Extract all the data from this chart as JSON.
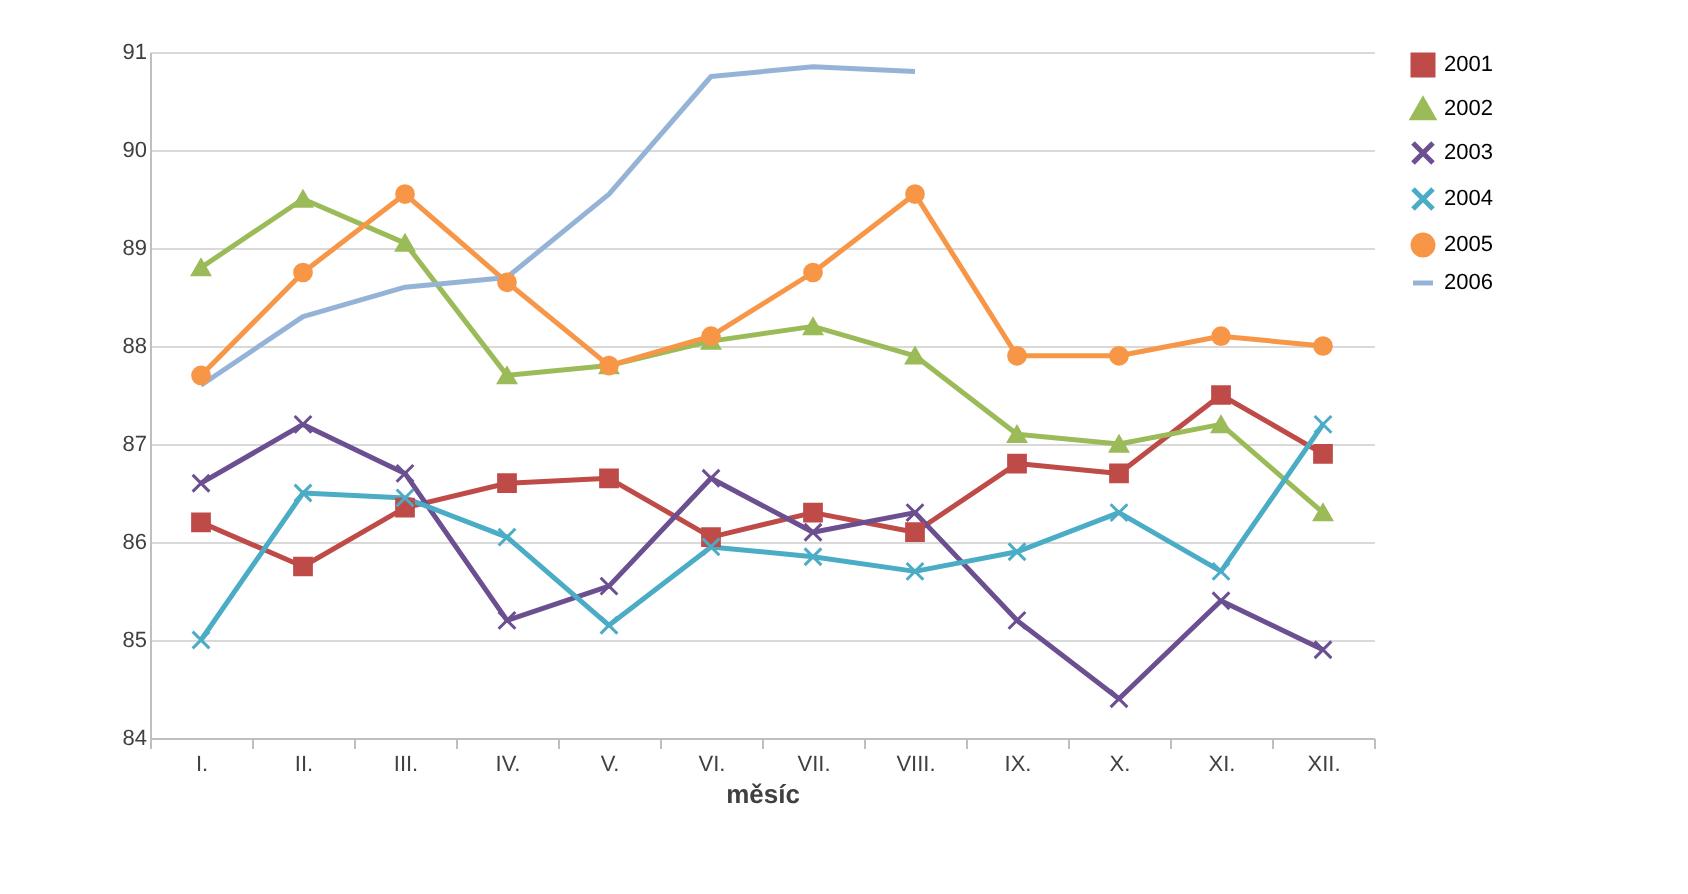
{
  "chart_data": {
    "type": "line",
    "xlabel": "měsíc",
    "categories": [
      "I.",
      "II.",
      "III.",
      "IV.",
      "V.",
      "VI.",
      "VII.",
      "VIII.",
      "IX.",
      "X.",
      "XI.",
      "XII."
    ],
    "series": [
      {
        "name": "2001",
        "color": "#be4b48",
        "marker": "square",
        "values": [
          86.2,
          85.75,
          86.35,
          86.6,
          86.65,
          86.05,
          86.3,
          86.1,
          86.8,
          86.7,
          87.5,
          86.9
        ]
      },
      {
        "name": "2002",
        "color": "#9bbb59",
        "marker": "triangle",
        "values": [
          88.8,
          89.5,
          89.05,
          87.7,
          87.8,
          88.05,
          88.2,
          87.9,
          87.1,
          87.0,
          87.2,
          86.3
        ]
      },
      {
        "name": "2003",
        "color": "#6b4f91",
        "marker": "cross",
        "values": [
          86.6,
          87.2,
          86.7,
          85.2,
          85.55,
          86.65,
          86.1,
          86.3,
          85.2,
          84.4,
          85.4,
          84.9
        ]
      },
      {
        "name": "2004",
        "color": "#4bacc6",
        "marker": "cross",
        "values": [
          85.0,
          86.5,
          86.45,
          86.05,
          85.15,
          85.95,
          85.85,
          85.7,
          85.9,
          86.3,
          85.7,
          87.2
        ]
      },
      {
        "name": "2005",
        "color": "#f79646",
        "marker": "circle",
        "values": [
          87.7,
          88.75,
          89.55,
          88.65,
          87.8,
          88.1,
          88.75,
          89.55,
          87.9,
          87.9,
          88.1,
          88.0
        ]
      },
      {
        "name": "2006",
        "color": "#95b3d7",
        "marker": "none",
        "values": [
          87.6,
          88.3,
          88.6,
          88.7,
          89.55,
          90.75,
          90.85,
          90.8,
          null,
          null,
          null,
          null
        ]
      }
    ],
    "ylim": [
      84,
      91
    ],
    "yticks": [
      84,
      85,
      86,
      87,
      88,
      89,
      90,
      91
    ],
    "grid": "y",
    "legend": "right"
  }
}
